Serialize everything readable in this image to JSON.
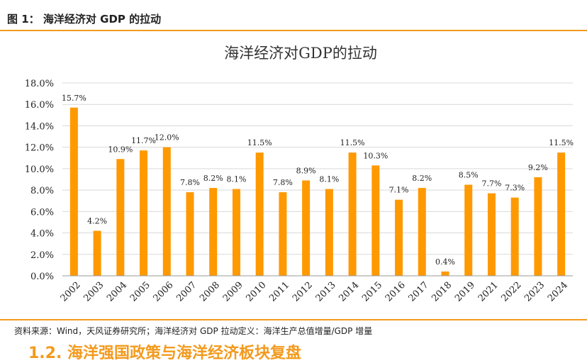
{
  "figure": {
    "label": "图 1：",
    "title": "海洋经济对 GDP 的拉动"
  },
  "footnote": "资料来源：Wind，天风证券研究所；海洋经济对 GDP 拉动定义：海洋生产总值增量/GDP 增量",
  "next_heading": "1.2. 海洋强国政策与海洋经济板块复盘",
  "colors": {
    "accent": "#F39A1D",
    "bar": "#FF9900",
    "grid": "#D9D9D9"
  },
  "chart_data": {
    "type": "bar",
    "title": "海洋经济对GDP的拉动",
    "categories": [
      "2002",
      "2003",
      "2004",
      "2005",
      "2006",
      "2007",
      "2008",
      "2009",
      "2010",
      "2011",
      "2012",
      "2013",
      "2014",
      "2015",
      "2016",
      "2017",
      "2018",
      "2019",
      "2021",
      "2022",
      "2023",
      "2024"
    ],
    "values": [
      15.7,
      4.2,
      10.9,
      11.7,
      12.0,
      7.8,
      8.2,
      8.1,
      11.5,
      7.8,
      8.9,
      8.1,
      11.5,
      10.3,
      7.1,
      8.2,
      0.4,
      8.5,
      7.7,
      7.3,
      9.2,
      11.5
    ],
    "value_labels": [
      "15.7%",
      "4.2%",
      "10.9%",
      "11.7%",
      "12.0%",
      "7.8%",
      "8.2%",
      "8.1%",
      "11.5%",
      "7.8%",
      "8.9%",
      "8.1%",
      "11.5%",
      "10.3%",
      "7.1%",
      "8.2%",
      "0.4%",
      "8.5%",
      "7.7%",
      "7.3%",
      "9.2%",
      "11.5%"
    ],
    "ylim": [
      0,
      18
    ],
    "yticks": [
      "0.0%",
      "2.0%",
      "4.0%",
      "6.0%",
      "8.0%",
      "10.0%",
      "12.0%",
      "14.0%",
      "16.0%",
      "18.0%"
    ],
    "xlabel": "",
    "ylabel": "",
    "grid": true,
    "legend": "none"
  }
}
